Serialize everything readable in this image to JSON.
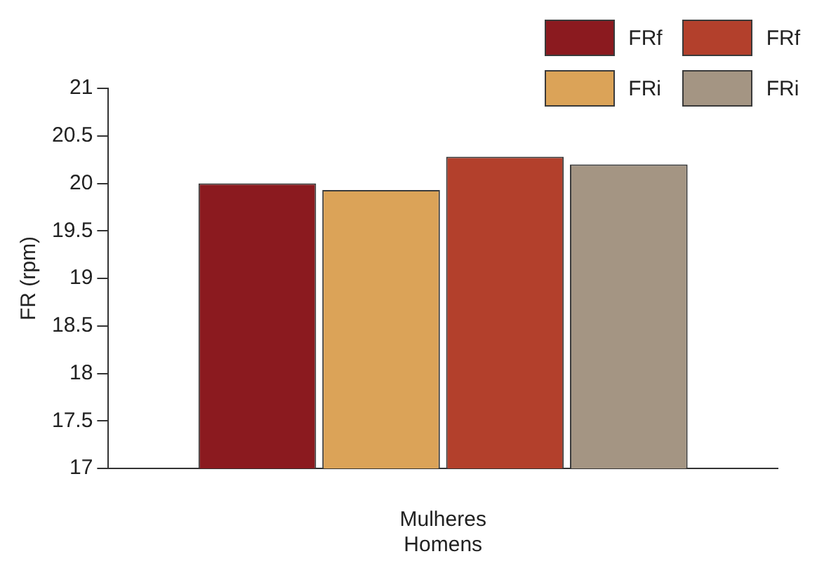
{
  "chart_data": {
    "type": "bar",
    "ylabel": "FR (rpm)",
    "xlabel": "Mulheres\nHomens",
    "categories": [
      null
    ],
    "series": [
      {
        "name": "FRf",
        "color": "#8b1a1f",
        "values": [
          20.0
        ]
      },
      {
        "name": "FRi",
        "color": "#dba358",
        "values": [
          19.93
        ]
      },
      {
        "name": "FRf",
        "color": "#b3402c",
        "values": [
          20.28
        ]
      },
      {
        "name": "FRi",
        "color": "#a49583",
        "values": [
          20.2
        ]
      }
    ],
    "ylim": [
      17,
      21
    ],
    "yticks": [
      17,
      17.5,
      18,
      18.5,
      19,
      19.5,
      20,
      20.5,
      21
    ],
    "grid": false,
    "legend": "top right"
  }
}
